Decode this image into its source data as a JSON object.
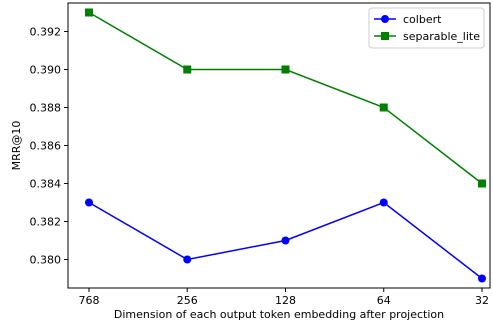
{
  "chart_data": {
    "type": "line",
    "categories": [
      "768",
      "256",
      "128",
      "64",
      "32"
    ],
    "series": [
      {
        "name": "colbert",
        "values": [
          0.383,
          0.38,
          0.381,
          0.383,
          0.379
        ],
        "color": "#0000ff",
        "marker": "circle"
      },
      {
        "name": "separable_lite",
        "values": [
          0.393,
          0.39,
          0.39,
          0.388,
          0.384
        ],
        "color": "#008000",
        "marker": "square"
      }
    ],
    "xlabel": "Dimension of each output token embedding after projection",
    "ylabel": "MRR@10",
    "ylim": [
      0.3785,
      0.3935
    ],
    "yticks": [
      "0.380",
      "0.382",
      "0.384",
      "0.386",
      "0.388",
      "0.390",
      "0.392"
    ],
    "grid": false,
    "legend_position": "top-right"
  }
}
